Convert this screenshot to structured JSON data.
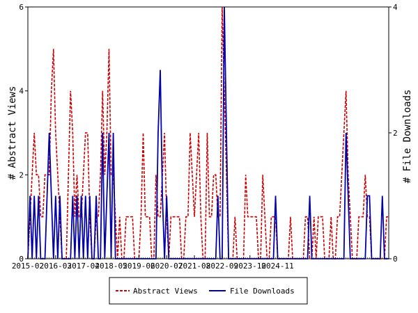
{
  "chart_data": {
    "type": "line",
    "ylabel_left": "# Abstract Views",
    "ylabel_right": "# File Downloads",
    "ylim_left": [
      0,
      6
    ],
    "ylim_right": [
      0,
      4
    ],
    "yticks_left": [
      "0",
      "2",
      "4",
      "6"
    ],
    "yticks_right": [
      "0",
      "2",
      "4"
    ],
    "xticks": [
      "2015-02",
      "2016-03",
      "2017-04",
      "2018-05",
      "2019-06",
      "2020-07",
      "2021-08",
      "2022-09",
      "2023-10",
      "2024-11"
    ],
    "x_start": "2015-02",
    "legend_position": "bottom-center",
    "series": [
      {
        "name": "Abstract Views",
        "axis": "left",
        "color": "#cc0000",
        "style": "dashed",
        "values": [
          0,
          1,
          2,
          3,
          2,
          2,
          1,
          1,
          2,
          2,
          2,
          4,
          5,
          3,
          2,
          1,
          0,
          0,
          0,
          2,
          4,
          3,
          1,
          2,
          1,
          1,
          2,
          3,
          3,
          1,
          0,
          0,
          1,
          1,
          2,
          4,
          2,
          3,
          5,
          2,
          2,
          1,
          0,
          1,
          0,
          0,
          1,
          1,
          1,
          1,
          0,
          0,
          0,
          1,
          3,
          1,
          1,
          1,
          0,
          0,
          2,
          1,
          1,
          2,
          3,
          1,
          0,
          1,
          1,
          1,
          1,
          1,
          0,
          0,
          1,
          1,
          3,
          2,
          1,
          2,
          3,
          1,
          0,
          0,
          3,
          1,
          1,
          2,
          2,
          1,
          1,
          6,
          4,
          2,
          0,
          0,
          0,
          1,
          0,
          0,
          0,
          0,
          2,
          1,
          1,
          1,
          1,
          1,
          0,
          0,
          2,
          1,
          0,
          0,
          1,
          1,
          1,
          0,
          0,
          0,
          0,
          0,
          0,
          1,
          0,
          0,
          0,
          0,
          0,
          0,
          1,
          1,
          0,
          0,
          1,
          0,
          1,
          1,
          1,
          0,
          0,
          0,
          1,
          0,
          0,
          1,
          1,
          2,
          3,
          4,
          2,
          1,
          0,
          0,
          0,
          1,
          1,
          1,
          2,
          1,
          1,
          0,
          0,
          0,
          0,
          0,
          0,
          0,
          1,
          1
        ]
      },
      {
        "name": "File Downloads",
        "axis": "right",
        "color": "#0000aa",
        "style": "solid",
        "values": [
          0,
          1,
          0,
          1,
          0,
          1,
          0,
          0,
          0,
          1,
          2,
          1,
          0,
          1,
          0,
          1,
          0,
          0,
          0,
          0,
          0,
          1,
          0,
          1,
          0,
          1,
          0,
          1,
          0,
          1,
          0,
          0,
          1,
          0,
          0,
          2,
          0,
          1,
          2,
          0,
          2,
          0,
          0,
          0,
          0,
          0,
          0,
          0,
          0,
          0,
          0,
          0,
          0,
          0,
          0,
          0,
          0,
          0,
          0,
          0,
          0,
          2,
          3,
          1,
          0,
          1,
          0,
          0,
          0,
          0,
          0,
          0,
          0,
          0,
          0,
          0,
          0,
          0,
          0,
          0,
          0,
          0,
          0,
          0,
          0,
          0,
          0,
          0,
          0,
          1,
          0,
          0,
          4,
          2,
          0,
          0,
          0,
          0,
          0,
          0,
          0,
          0,
          0,
          0,
          0,
          0,
          0,
          0,
          0,
          0,
          0,
          0,
          0,
          0,
          0,
          0,
          1,
          0,
          0,
          0,
          0,
          0,
          0,
          0,
          0,
          0,
          0,
          0,
          0,
          0,
          0,
          0,
          1,
          0,
          0,
          0,
          0,
          0,
          0,
          0,
          0,
          0,
          0,
          0,
          0,
          0,
          0,
          0,
          0,
          2,
          1,
          0,
          0,
          0,
          0,
          0,
          0,
          0,
          0,
          1,
          1,
          0,
          0,
          0,
          0,
          0,
          1,
          0,
          0,
          0
        ]
      }
    ]
  }
}
